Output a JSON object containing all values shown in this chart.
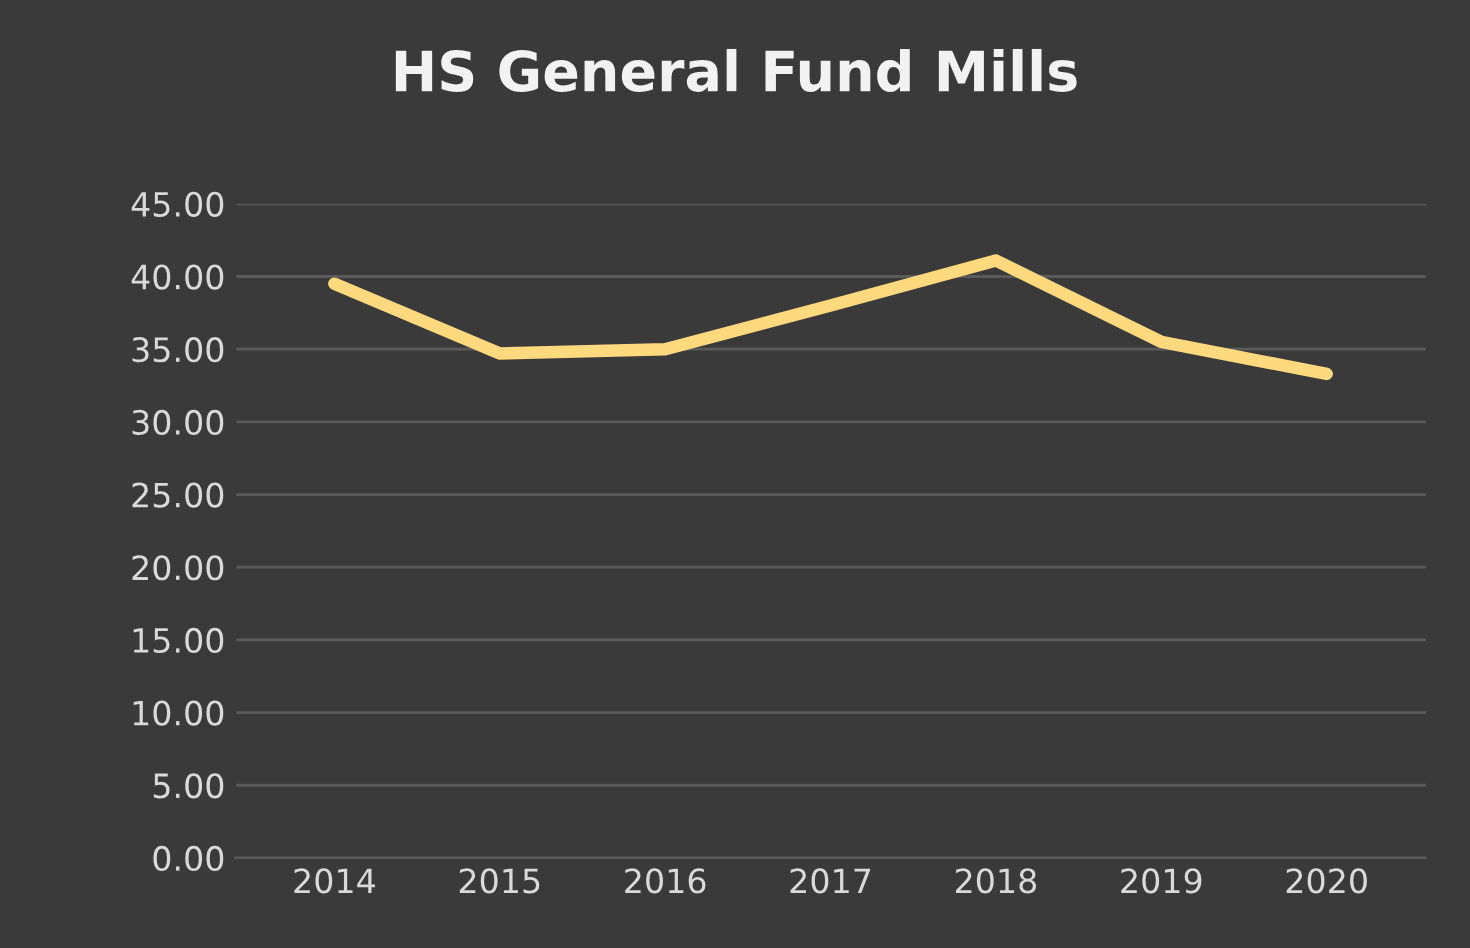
{
  "chart_data": {
    "type": "line",
    "title": "HS General Fund Mills",
    "categories": [
      "2014",
      "2015",
      "2016",
      "2017",
      "2018",
      "2019",
      "2020"
    ],
    "series": [
      {
        "color": "#ffd97e",
        "values": [
          39.5,
          34.7,
          35.0,
          38.0,
          41.1,
          35.5,
          33.3
        ]
      }
    ],
    "ylim": [
      0,
      45
    ],
    "yticks": [
      {
        "value": 0,
        "label": "0.00"
      },
      {
        "value": 5,
        "label": "5.00"
      },
      {
        "value": 10,
        "label": "10.00"
      },
      {
        "value": 15,
        "label": "15.00"
      },
      {
        "value": 20,
        "label": "20.00"
      },
      {
        "value": 25,
        "label": "25.00"
      },
      {
        "value": 30,
        "label": "30.00"
      },
      {
        "value": 35,
        "label": "35.00"
      },
      {
        "value": 40,
        "label": "40.00"
      },
      {
        "value": 45,
        "label": "45.00"
      }
    ],
    "grid": "y",
    "legend": false,
    "marker": "none",
    "line_style": "solid"
  }
}
